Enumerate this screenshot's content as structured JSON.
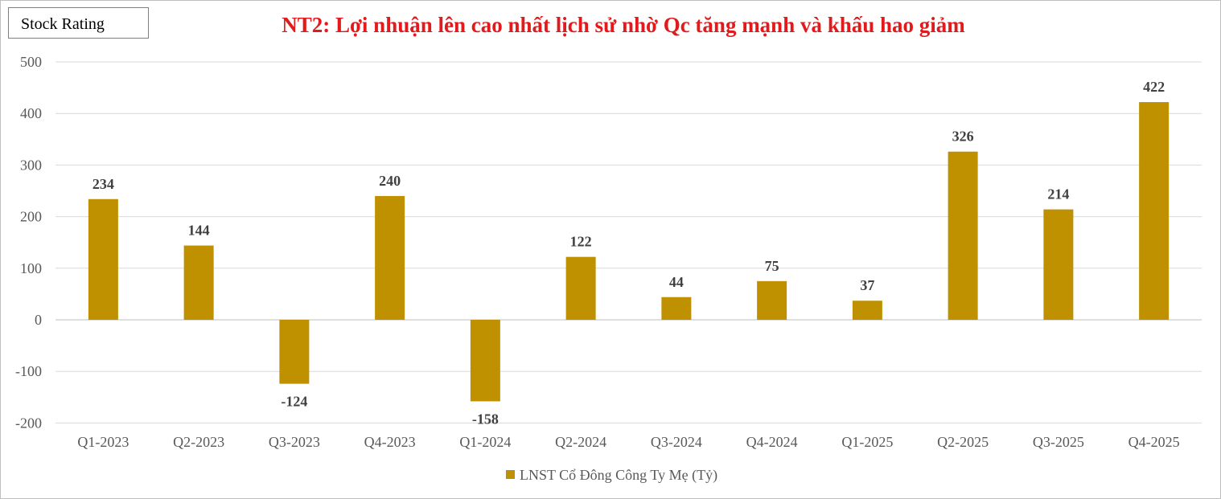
{
  "badge": {
    "label": "Stock Rating"
  },
  "chart_data": {
    "type": "bar",
    "title": "NT2: Lợi nhuận lên cao nhất lịch sử nhờ Qc tăng mạnh và khấu hao giảm",
    "categories": [
      "Q1-2023",
      "Q2-2023",
      "Q3-2023",
      "Q4-2023",
      "Q1-2024",
      "Q2-2024",
      "Q3-2024",
      "Q4-2024",
      "Q1-2025",
      "Q2-2025",
      "Q3-2025",
      "Q4-2025"
    ],
    "series": [
      {
        "name": "LNST Cổ Đông Công Ty Mẹ (Tỷ)",
        "values": [
          234,
          144,
          -124,
          240,
          -158,
          122,
          44,
          75,
          37,
          326,
          214,
          422
        ],
        "color": "#bf9000"
      }
    ],
    "ylim": [
      -200,
      500
    ],
    "yticks": [
      500,
      400,
      300,
      200,
      100,
      0,
      -100,
      -200
    ],
    "xlabel": "",
    "ylabel": "",
    "grid": true,
    "legend_position": "bottom"
  }
}
